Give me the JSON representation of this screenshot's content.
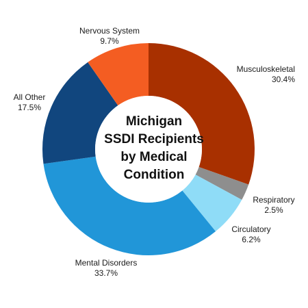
{
  "chart_data": {
    "type": "pie",
    "variant": "donut",
    "title_lines": [
      "Michigan",
      "SSDI Recipients",
      "by Medical",
      "Condition"
    ],
    "slices": [
      {
        "name": "Musculoskeletal",
        "label": "30.4%",
        "value": 30.4,
        "color": "#a83000"
      },
      {
        "name": "Respiratory",
        "label": "2.5%",
        "value": 2.5,
        "color": "#8e8e8e"
      },
      {
        "name": "Circulatory",
        "label": "6.2%",
        "value": 6.2,
        "color": "#8fdcf7"
      },
      {
        "name": "Mental Disorders",
        "label": "33.7%",
        "value": 33.7,
        "color": "#2196d8"
      },
      {
        "name": "All Other",
        "label": "17.5%",
        "value": 17.5,
        "color": "#11467e"
      },
      {
        "name": "Nervous System",
        "label": "9.7%",
        "value": 9.7,
        "color": "#f45d22"
      }
    ],
    "start": "top",
    "direction": "clockwise",
    "legend": "none"
  }
}
